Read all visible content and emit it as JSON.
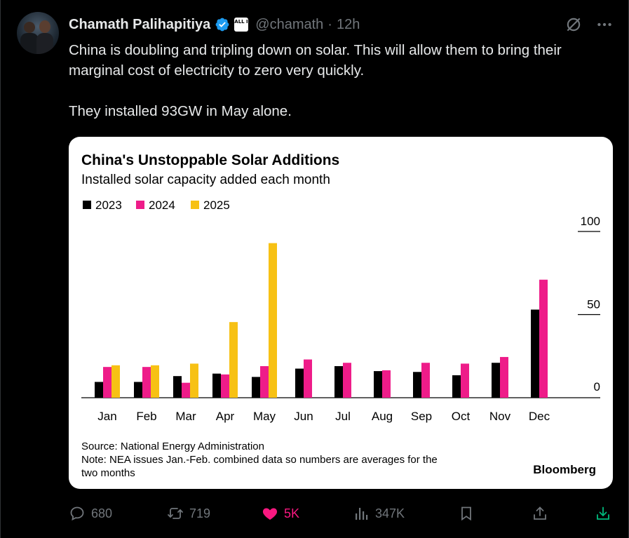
{
  "tweet": {
    "author_name": "Chamath Palihapitiya",
    "affiliate_badge": "ALL IN",
    "handle": "@chamath",
    "separator": "·",
    "time": "12h",
    "text_line1": "China is doubling and tripling down on solar. This will allow them to bring their marginal cost of electricity to zero very quickly.",
    "text_line2": "They installed 93GW in May alone."
  },
  "icons": {
    "verified": "verified-badge-icon",
    "grok": "grok-icon",
    "more": "more-icon",
    "reply": "reply-icon",
    "retweet": "retweet-icon",
    "like": "heart-icon",
    "views": "views-icon",
    "bookmark": "bookmark-icon",
    "share": "share-icon",
    "download": "download-icon"
  },
  "actions": {
    "replies": "680",
    "retweets": "719",
    "likes": "5K",
    "views": "347K"
  },
  "colors": {
    "background": "#000000",
    "text": "#e7e9ea",
    "muted": "#71767b",
    "verified": "#1d9bf0",
    "like": "#f91880",
    "download": "#00ba7c",
    "series_2023": "#000000",
    "series_2024": "#ee1c89",
    "series_2025": "#f7c114"
  },
  "chart_data": {
    "type": "bar",
    "title": "China's Unstoppable Solar Additions",
    "subtitle": "Installed solar capacity added each month",
    "categories": [
      "Jan",
      "Feb",
      "Mar",
      "Apr",
      "May",
      "Jun",
      "Jul",
      "Aug",
      "Sep",
      "Oct",
      "Nov",
      "Dec"
    ],
    "series": [
      {
        "name": "2023",
        "color": "#000000",
        "values": [
          9.5,
          9.5,
          13,
          14.5,
          12.5,
          17.5,
          19,
          16,
          15.5,
          13.5,
          21,
          53
        ]
      },
      {
        "name": "2024",
        "color": "#ee1c89",
        "values": [
          18.5,
          18.5,
          9,
          14,
          19,
          23,
          21,
          16.5,
          21,
          20.5,
          24.5,
          71
        ]
      },
      {
        "name": "2025",
        "color": "#f7c114",
        "values": [
          19.5,
          19.5,
          20.5,
          45.5,
          93,
          null,
          null,
          null,
          null,
          null,
          null,
          null
        ]
      }
    ],
    "yticks": [
      0,
      50,
      100
    ],
    "ylim": [
      0,
      100
    ],
    "legend_position": "top-left",
    "source": "Source: National Energy Administration",
    "note_line1": "Note: NEA issues Jan.-Feb. combined data so numbers are averages for the",
    "note_line2": "two months",
    "brand": "Bloomberg"
  }
}
